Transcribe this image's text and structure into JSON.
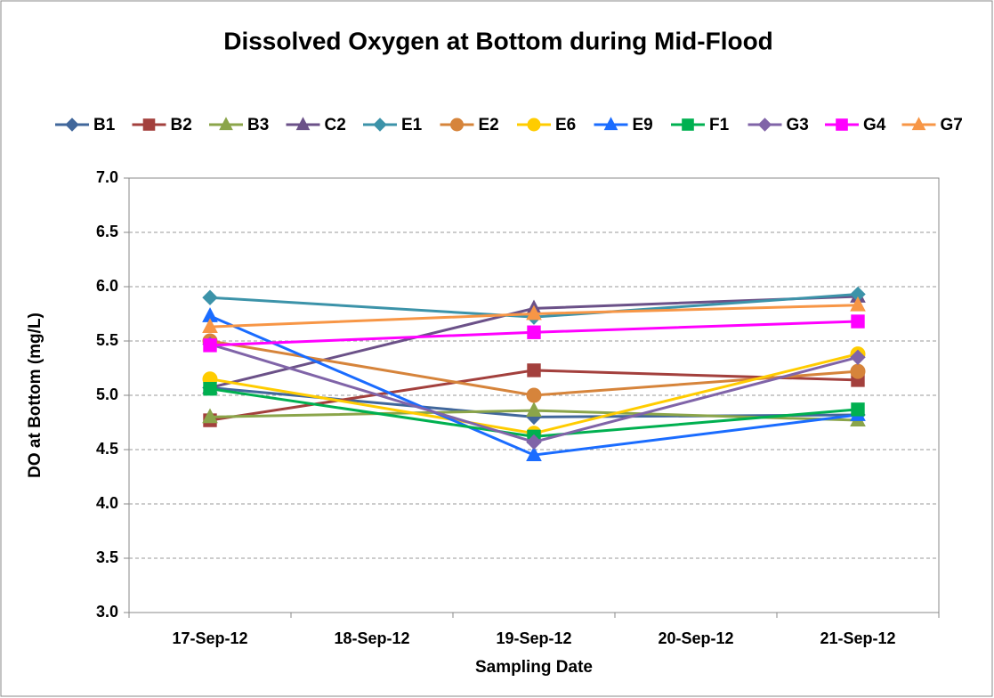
{
  "chart_data": {
    "type": "line",
    "title": "Dissolved Oxygen at Bottom during Mid-Flood",
    "x_label": "Sampling Date",
    "y_label": "DO at Bottom (mg/L)",
    "categories": [
      "17-Sep-12",
      "18-Sep-12",
      "19-Sep-12",
      "20-Sep-12",
      "21-Sep-12"
    ],
    "x": [
      "17-Sep-12",
      "19-Sep-12",
      "21-Sep-12"
    ],
    "ylim": [
      3.0,
      7.0
    ],
    "yticks": [
      {
        "value": 3,
        "label": "3.0"
      },
      {
        "value": 3.5,
        "label": "3.5"
      },
      {
        "value": 4,
        "label": "4.0"
      },
      {
        "value": 4.5,
        "label": "4.5"
      },
      {
        "value": 5,
        "label": "5.0"
      },
      {
        "value": 5.5,
        "label": "5.5"
      },
      {
        "value": 6,
        "label": "6.0"
      },
      {
        "value": 6.5,
        "label": "6.5"
      },
      {
        "value": 7,
        "label": "7.0"
      }
    ],
    "grid": true,
    "legend": "top",
    "series": [
      {
        "name": "B1",
        "color": "#41679b",
        "marker": "diamond",
        "values": [
          5.07,
          4.8,
          4.82
        ]
      },
      {
        "name": "B2",
        "color": "#a3403d",
        "marker": "square",
        "values": [
          4.77,
          5.23,
          5.14
        ]
      },
      {
        "name": "B3",
        "color": "#8ba54a",
        "marker": "triangle",
        "values": [
          4.8,
          4.86,
          4.77
        ]
      },
      {
        "name": "C2",
        "color": "#6b5188",
        "marker": "triangle",
        "values": [
          5.07,
          5.8,
          5.91
        ]
      },
      {
        "name": "E1",
        "color": "#3c93a9",
        "marker": "diamond",
        "values": [
          5.9,
          5.72,
          5.93
        ]
      },
      {
        "name": "E2",
        "color": "#d6843b",
        "marker": "circle",
        "values": [
          5.5,
          5.0,
          5.22
        ]
      },
      {
        "name": "E6",
        "color": "#ffcc00",
        "marker": "circle",
        "values": [
          5.15,
          4.65,
          5.38
        ]
      },
      {
        "name": "E9",
        "color": "#1a6cff",
        "marker": "triangle",
        "values": [
          5.73,
          4.45,
          4.82
        ]
      },
      {
        "name": "F1",
        "color": "#00b050",
        "marker": "square",
        "values": [
          5.06,
          4.62,
          4.87
        ]
      },
      {
        "name": "G3",
        "color": "#8064a8",
        "marker": "diamond",
        "values": [
          5.47,
          4.57,
          5.35
        ]
      },
      {
        "name": "G4",
        "color": "#ff00ff",
        "marker": "square",
        "values": [
          5.46,
          5.58,
          5.68
        ]
      },
      {
        "name": "G7",
        "color": "#f79646",
        "marker": "triangle",
        "values": [
          5.63,
          5.75,
          5.83
        ]
      }
    ]
  }
}
